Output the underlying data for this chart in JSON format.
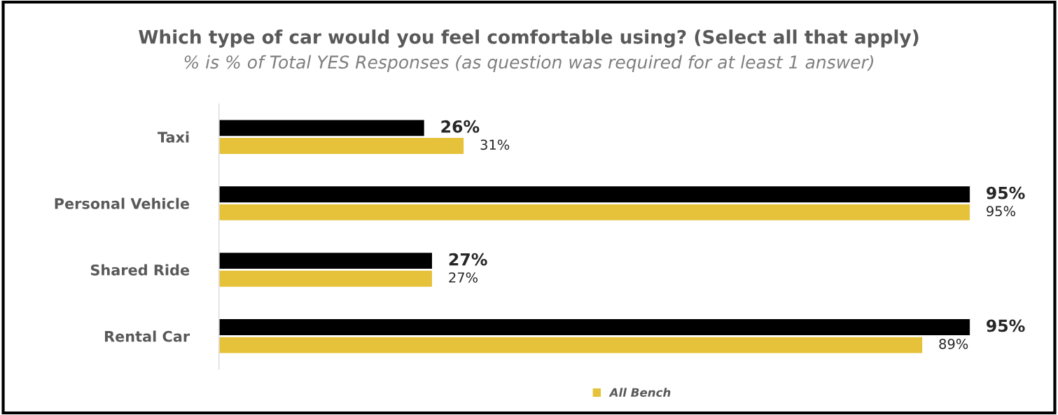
{
  "chart_data": {
    "type": "bar",
    "orientation": "horizontal",
    "title": "Which type of car would you feel comfortable using? (Select all that apply)",
    "subtitle": "% is % of Total YES Responses (as question was required for at least 1 answer)",
    "categories": [
      "Taxi",
      "Personal Vehicle",
      "Shared Ride",
      "Rental Car"
    ],
    "series": [
      {
        "color": "#000000",
        "values": [
          26,
          95,
          27,
          95
        ],
        "value_labels": [
          "26%",
          "95%",
          "27%",
          "95%"
        ]
      },
      {
        "name": "All Bench",
        "color": "#e6c23a",
        "values": [
          31,
          95,
          27,
          89
        ],
        "value_labels": [
          "31%",
          "95%",
          "27%",
          "89%"
        ]
      }
    ],
    "legend": "bottom",
    "grid": false
  }
}
